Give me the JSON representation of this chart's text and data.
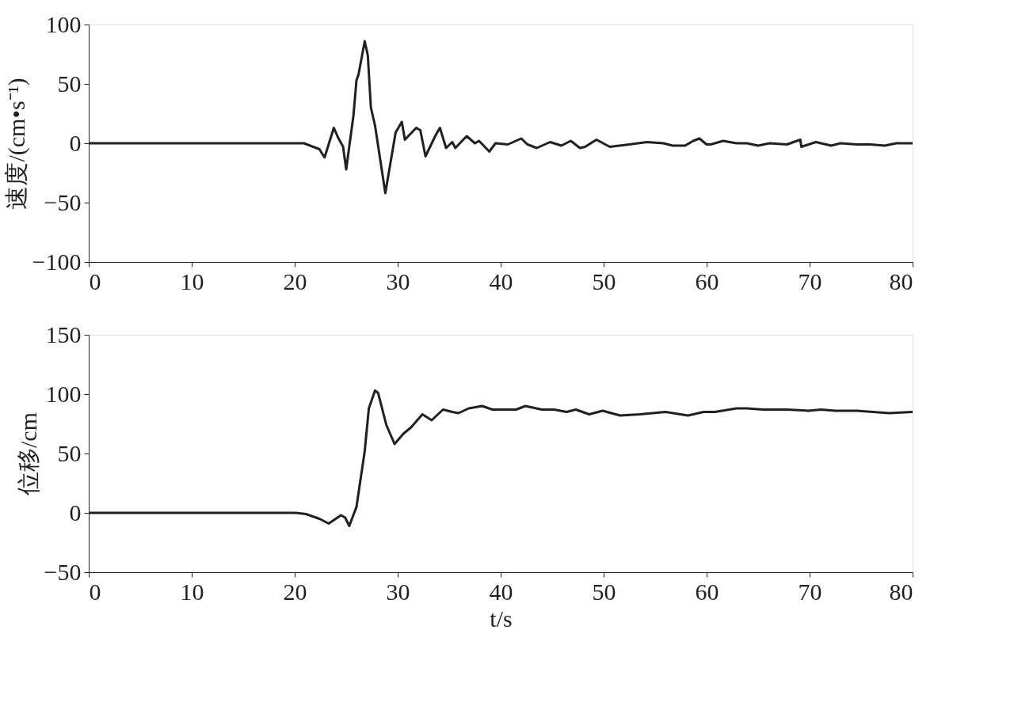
{
  "chart_data": [
    {
      "type": "line",
      "ylabel": "速度/(cm•s⁻¹)",
      "xlim": [
        0,
        80
      ],
      "xticks": [
        0,
        10,
        20,
        30,
        40,
        50,
        60,
        70,
        80
      ],
      "ylim": [
        -100,
        100
      ],
      "yticks": [
        -100,
        -50,
        0,
        50,
        100
      ],
      "grid": false,
      "series": [
        {
          "color": "#231f20",
          "x": [
            0,
            10,
            20.9,
            22.4,
            22.9,
            23.8,
            24.2,
            24.7,
            25.0,
            25.7,
            26.0,
            26.2,
            26.8,
            27.1,
            27.4,
            27.8,
            28.8,
            29.8,
            30.4,
            30.7,
            31.8,
            32.2,
            32.7,
            33.7,
            34.1,
            34.7,
            35.3,
            35.6,
            36.7,
            37.5,
            37.9,
            38.9,
            39.5,
            40.7,
            42.0,
            42.6,
            43.5,
            44.8,
            45.9,
            46.8,
            47.7,
            48.2,
            49.3,
            50.6,
            52.5,
            54.2,
            55.8,
            56.7,
            57.9,
            58.7,
            59.3,
            60.0,
            60.4,
            61.6,
            62.9,
            63.9,
            65.0,
            66.1,
            67.8,
            69.1,
            69.2,
            70.6,
            72.1,
            73.0,
            74.6,
            75.9,
            77.3,
            78.4,
            80
          ],
          "values": [
            0,
            0,
            0,
            -5,
            -12,
            13,
            5,
            -3,
            -22,
            23,
            53,
            58,
            86,
            74,
            30,
            15,
            -42,
            9,
            18,
            3,
            13,
            11,
            -11,
            7,
            13,
            -4,
            1,
            -4,
            6,
            0,
            2,
            -7,
            0,
            -1,
            4,
            -1,
            -4,
            1,
            -2,
            2,
            -4,
            -3,
            3,
            -3,
            -1,
            1,
            0,
            -2,
            -2,
            2,
            4,
            -1,
            -1,
            2,
            0,
            0,
            -2,
            0,
            -1,
            3,
            -3,
            1,
            -2,
            0,
            -1,
            -1,
            -2,
            0,
            0
          ]
        }
      ]
    },
    {
      "type": "line",
      "xlabel": "t/s",
      "ylabel": "位移/cm",
      "xlim": [
        0,
        80
      ],
      "xticks": [
        0,
        10,
        20,
        30,
        40,
        50,
        60,
        70,
        80
      ],
      "ylim": [
        -50,
        150
      ],
      "yticks": [
        -50,
        0,
        50,
        100,
        150
      ],
      "grid": false,
      "series": [
        {
          "color": "#231f20",
          "x": [
            0,
            10,
            20.1,
            21.1,
            22.4,
            23.3,
            24.5,
            24.9,
            25.3,
            26.0,
            26.8,
            27.2,
            27.8,
            28.1,
            28.9,
            29.7,
            30.6,
            31.3,
            32.4,
            33.3,
            34.4,
            35.3,
            35.9,
            36.9,
            38.2,
            39.2,
            41.5,
            42.4,
            44.0,
            45.2,
            46.4,
            47.3,
            48.6,
            49.9,
            51.6,
            53.5,
            56.0,
            58.2,
            59.7,
            60.8,
            62.9,
            63.9,
            65.5,
            67.8,
            69.9,
            71.1,
            72.5,
            74.6,
            77.7,
            80
          ],
          "values": [
            0,
            0,
            0,
            -1,
            -5,
            -9,
            -2,
            -4,
            -11,
            5,
            52,
            88,
            103,
            101,
            74,
            58,
            67,
            72,
            83,
            78,
            87,
            85,
            84,
            88,
            90,
            87,
            87,
            90,
            87,
            87,
            85,
            87,
            83,
            86,
            82,
            83,
            85,
            82,
            85,
            85,
            88,
            88,
            87,
            87,
            86,
            87,
            86,
            86,
            84,
            85
          ]
        }
      ]
    }
  ]
}
